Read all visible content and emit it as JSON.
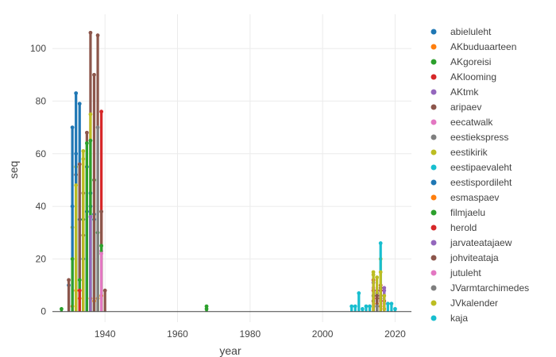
{
  "chart_data": {
    "type": "scatter",
    "xlabel": "year",
    "ylabel": "seq",
    "xlim": [
      1925.5,
      2024.5
    ],
    "ylim": [
      -4,
      113
    ],
    "xticks": [
      1940,
      1960,
      1980,
      2000,
      2020
    ],
    "yticks": [
      0,
      20,
      40,
      60,
      80,
      100
    ],
    "grid": true,
    "legend_position": "right",
    "series": [
      {
        "name": "abieluleht",
        "color": "#1f77b4",
        "points": [
          [
            1930,
            10
          ],
          [
            1931,
            70
          ],
          [
            1932,
            83
          ],
          [
            1933,
            79
          ],
          [
            1933,
            35
          ],
          [
            1934,
            20
          ],
          [
            1935,
            55
          ],
          [
            1936,
            40
          ],
          [
            1937,
            35
          ]
        ]
      },
      {
        "name": "AKbuduaarteen",
        "color": "#ff7f0e",
        "points": [
          [
            2013,
            2
          ],
          [
            2015,
            3
          ],
          [
            2016,
            2
          ],
          [
            2017,
            1
          ]
        ]
      },
      {
        "name": "AKgoreisi",
        "color": "#2ca02c",
        "points": [
          [
            1928,
            1
          ],
          [
            1968,
            2
          ],
          [
            1968,
            1
          ]
        ]
      },
      {
        "name": "AKlooming",
        "color": "#d62728",
        "points": [
          [
            1939,
            76
          ],
          [
            2014,
            8
          ],
          [
            2015,
            5
          ],
          [
            2016,
            10
          ],
          [
            2017,
            4
          ]
        ]
      },
      {
        "name": "AKtmk",
        "color": "#9467bd",
        "points": [
          [
            1935,
            38
          ],
          [
            2014,
            11
          ],
          [
            2015,
            8
          ],
          [
            2016,
            6
          ],
          [
            2017,
            8
          ]
        ]
      },
      {
        "name": "aripaev",
        "color": "#8c564b",
        "points": [
          [
            1930,
            12
          ],
          [
            1932,
            52
          ],
          [
            1933,
            56
          ],
          [
            1934,
            29
          ],
          [
            1935,
            68
          ],
          [
            1936,
            106
          ],
          [
            1938,
            105
          ],
          [
            1939,
            38
          ],
          [
            1940,
            8
          ]
        ]
      },
      {
        "name": "eecatwalk",
        "color": "#e377c2",
        "points": [
          [
            1939,
            23
          ],
          [
            2014,
            9
          ],
          [
            2016,
            4
          ]
        ]
      },
      {
        "name": "eestiekspress",
        "color": "#7f7f7f",
        "points": [
          [
            2014,
            6
          ],
          [
            2015,
            7
          ],
          [
            2016,
            5
          ]
        ]
      },
      {
        "name": "eestikirik",
        "color": "#bcbd22",
        "points": [
          [
            1931,
            32
          ],
          [
            1932,
            55
          ],
          [
            1934,
            61
          ],
          [
            1936,
            75
          ],
          [
            2014,
            15
          ],
          [
            2015,
            13
          ],
          [
            2016,
            20
          ]
        ]
      },
      {
        "name": "eestipaevaleht",
        "color": "#17becf",
        "points": [
          [
            2008,
            2
          ],
          [
            2010,
            7
          ],
          [
            2012,
            2
          ],
          [
            2016,
            26
          ],
          [
            2018,
            3
          ]
        ]
      },
      {
        "name": "eestispordileht",
        "color": "#1f77b4",
        "points": [
          [
            1931,
            40
          ],
          [
            1932,
            60
          ],
          [
            1935,
            38
          ],
          [
            1936,
            45
          ],
          [
            1937,
            37
          ]
        ]
      },
      {
        "name": "esmaspaev",
        "color": "#ff7f0e",
        "points": [
          [
            1931,
            2
          ],
          [
            1932,
            8
          ],
          [
            1933,
            5
          ],
          [
            1936,
            5
          ],
          [
            1937,
            4
          ],
          [
            1938,
            5
          ],
          [
            1939,
            6
          ]
        ]
      },
      {
        "name": "filmjaelu",
        "color": "#2ca02c",
        "points": [
          [
            1931,
            20
          ],
          [
            1933,
            12
          ],
          [
            1934,
            35
          ],
          [
            1935,
            64
          ],
          [
            1936,
            65
          ],
          [
            1937,
            50
          ],
          [
            1938,
            30
          ],
          [
            1939,
            25
          ]
        ]
      },
      {
        "name": "herold",
        "color": "#d62728",
        "points": [
          [
            1933,
            8
          ],
          [
            2014,
            12
          ],
          [
            2016,
            8
          ]
        ]
      },
      {
        "name": "jarvateatajaew",
        "color": "#9467bd",
        "points": [
          [
            1936,
            36
          ],
          [
            2017,
            9
          ]
        ]
      },
      {
        "name": "johviteataja",
        "color": "#8c564b",
        "points": [
          [
            1934,
            45
          ],
          [
            1937,
            90
          ],
          [
            2014,
            4
          ],
          [
            2015,
            6
          ],
          [
            2016,
            9
          ]
        ]
      },
      {
        "name": "jutuleht",
        "color": "#e377c2",
        "points": [
          [
            1939,
            22
          ],
          [
            2017,
            3
          ]
        ]
      },
      {
        "name": "JVarmtarchimedes",
        "color": "#7f7f7f",
        "points": [
          [
            1938,
            70
          ],
          [
            2015,
            2
          ]
        ]
      },
      {
        "name": "JVkalender",
        "color": "#bcbd22",
        "points": [
          [
            1932,
            48
          ],
          [
            1934,
            58
          ],
          [
            2014,
            14
          ],
          [
            2016,
            15
          ],
          [
            2017,
            6
          ]
        ]
      },
      {
        "name": "kaja",
        "color": "#17becf",
        "points": [
          [
            2009,
            2
          ],
          [
            2011,
            1
          ],
          [
            2013,
            2
          ],
          [
            2019,
            3
          ],
          [
            2020,
            1
          ]
        ]
      }
    ]
  }
}
